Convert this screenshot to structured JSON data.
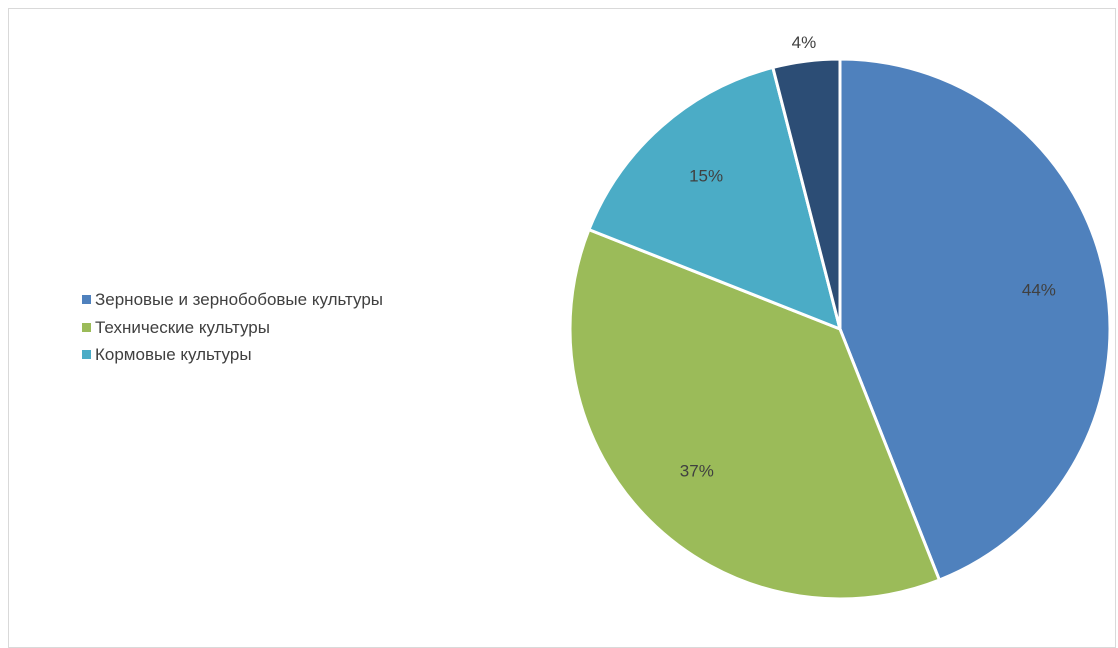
{
  "chart_data": {
    "type": "pie",
    "title": "",
    "categories": [
      "Зерновые и зернобобовые культуры",
      "Технические культуры",
      "Кормовые культуры",
      ""
    ],
    "values": [
      44,
      37,
      15,
      4
    ],
    "labels": [
      "44%",
      "37%",
      "15%",
      "4%"
    ],
    "colors": [
      "#4f81bd",
      "#9bbb59",
      "#4bacc6",
      "#2c4d75"
    ],
    "legend": {
      "position": "left",
      "items": [
        "Зерновые и зернобобовые культуры",
        "Технические культуры",
        "Кормовые культуры"
      ]
    }
  }
}
